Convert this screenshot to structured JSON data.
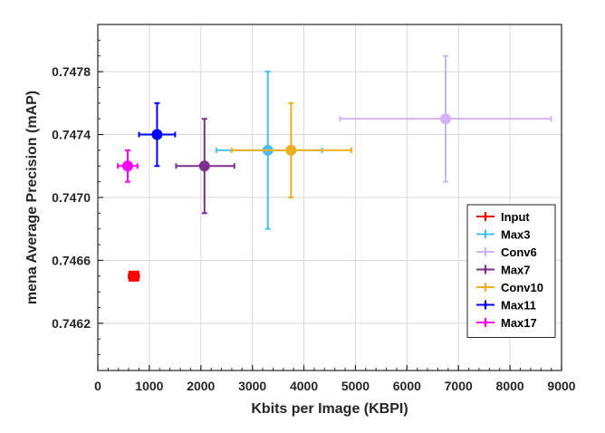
{
  "chart_data": {
    "type": "scatter",
    "title": "",
    "xlabel": "Kbits per Image (KBPI)",
    "ylabel": "mena Average Precision (mAP)",
    "xlim": [
      0,
      9000
    ],
    "ylim": [
      0.7459,
      0.7481
    ],
    "xticks": [
      0,
      1000,
      2000,
      3000,
      4000,
      5000,
      6000,
      7000,
      8000,
      9000
    ],
    "xtick_labels": [
      "0",
      "1000",
      "2000",
      "3000",
      "4000",
      "5000",
      "6000",
      "7000",
      "8000",
      "9000"
    ],
    "yticks": [
      0.7462,
      0.7466,
      0.747,
      0.7474,
      0.7478
    ],
    "ytick_labels": [
      "0.7462",
      "0.7466",
      "0.7470",
      "0.7474",
      "0.7478"
    ],
    "grid": true,
    "legend_position": "bottom-right",
    "series": [
      {
        "name": "Input",
        "color": "#ff0000",
        "marker": "square",
        "x": 700,
        "y": 0.7465,
        "x_err": [
          600,
          800
        ],
        "y_err": [
          0.74648,
          0.74652
        ]
      },
      {
        "name": "Max3",
        "color": "#4dbeee",
        "marker": "circle",
        "x": 3300,
        "y": 0.7473,
        "x_err": [
          2300,
          4350
        ],
        "y_err": [
          0.7468,
          0.7478
        ]
      },
      {
        "name": "Conv6",
        "color": "#d2b4f5",
        "marker": "circle",
        "x": 6750,
        "y": 0.7475,
        "x_err": [
          4700,
          8800
        ],
        "y_err": [
          0.7471,
          0.7479
        ]
      },
      {
        "name": "Max7",
        "color": "#7e2f8e",
        "marker": "circle",
        "x": 2070,
        "y": 0.7472,
        "x_err": [
          1520,
          2650
        ],
        "y_err": [
          0.7469,
          0.7475
        ]
      },
      {
        "name": "Conv10",
        "color": "#edb120",
        "marker": "circle",
        "x": 3750,
        "y": 0.7473,
        "x_err": [
          2600,
          4920
        ],
        "y_err": [
          0.747,
          0.7476
        ]
      },
      {
        "name": "Max11",
        "color": "#0000ff",
        "marker": "circle",
        "x": 1150,
        "y": 0.7474,
        "x_err": [
          800,
          1500
        ],
        "y_err": [
          0.7472,
          0.7476
        ]
      },
      {
        "name": "Max17",
        "color": "#ff00ff",
        "marker": "circle",
        "x": 580,
        "y": 0.7472,
        "x_err": [
          390,
          770
        ],
        "y_err": [
          0.7471,
          0.7473
        ]
      }
    ]
  }
}
